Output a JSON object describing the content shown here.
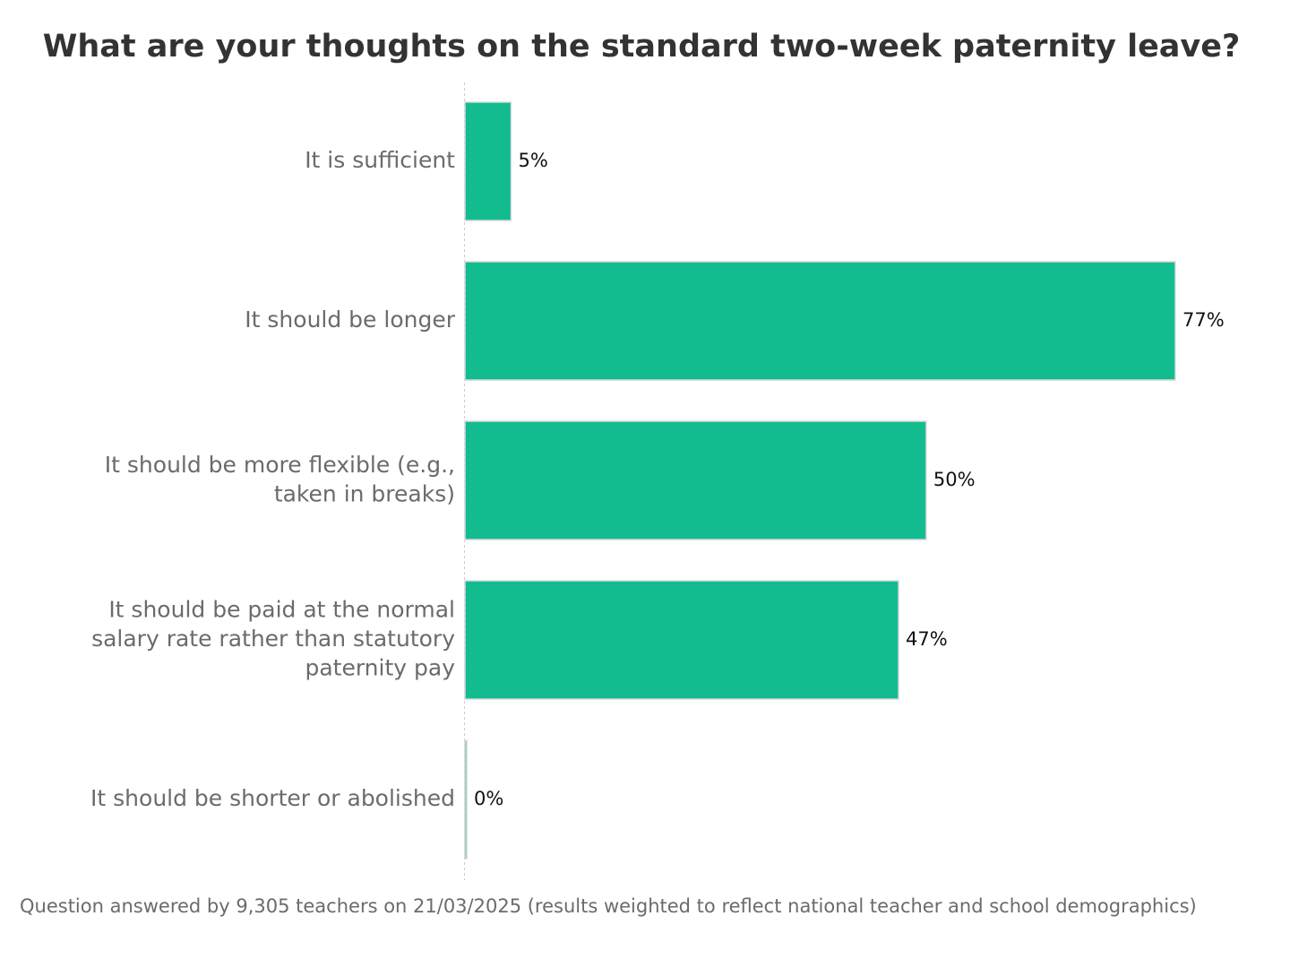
{
  "chart_data": {
    "type": "bar",
    "orientation": "horizontal",
    "title": "What are your thoughts on the standard two-week paternity leave?",
    "categories": [
      "It is sufficient",
      "It should be longer",
      "It should be more flexible (e.g., taken in breaks)",
      "It should be paid at the normal salary rate rather than statutory paternity pay",
      "It should be shorter or abolished"
    ],
    "category_lines": [
      [
        "It is sufficient"
      ],
      [
        "It should be longer"
      ],
      [
        "It should be more flexible (e.g.,",
        "taken in breaks)"
      ],
      [
        "It should be paid at the normal",
        "salary rate rather than statutory",
        "paternity pay"
      ],
      [
        "It should be shorter or abolished"
      ]
    ],
    "values": [
      5,
      77,
      50,
      47,
      0
    ],
    "value_labels": [
      "5%",
      "77%",
      "50%",
      "47%",
      "0%"
    ],
    "unit": "%",
    "xlim": [
      0,
      80
    ],
    "bar_color": "#12bc8f",
    "grid": false,
    "legend": "none"
  },
  "footnote": "Question answered by 9,305 teachers on 21/03/2025 (results weighted to reflect national teacher and school demographics)"
}
